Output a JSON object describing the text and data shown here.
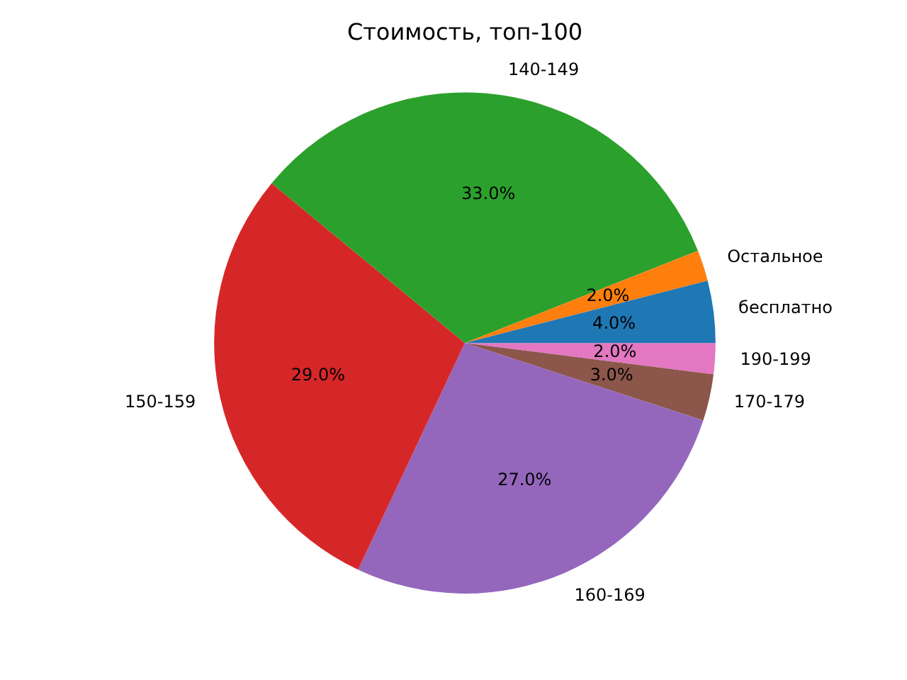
{
  "chart_data": {
    "type": "pie",
    "title": "Стоимость, топ-100",
    "categories": [
      "190-199",
      "170-179",
      "160-169",
      "150-159",
      "140-149",
      "Остальное",
      "бесплатно"
    ],
    "values": [
      2,
      3,
      27,
      29,
      33,
      2,
      4
    ],
    "colors": [
      "#e377c2",
      "#8c564b",
      "#9467bd",
      "#d62728",
      "#2ca02c",
      "#ff7f0e",
      "#1f77b4"
    ],
    "value_labels": [
      "2.0%",
      "3.0%",
      "27.0%",
      "29.0%",
      "33.0%",
      "2.0%",
      "4.0%"
    ],
    "legend": false
  }
}
